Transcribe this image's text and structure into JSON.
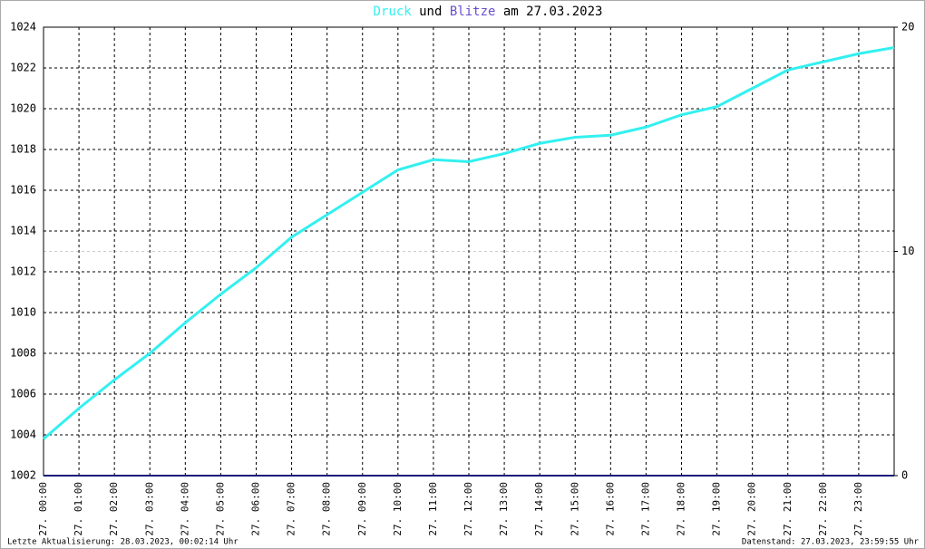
{
  "chart_data": {
    "type": "line",
    "title": {
      "connector": "und",
      "suffix": "am 27.03.2023"
    },
    "x": [
      0,
      1,
      2,
      3,
      4,
      5,
      6,
      7,
      8,
      9,
      10,
      11,
      12,
      13,
      14,
      15,
      16,
      17,
      18,
      19,
      20,
      21,
      22,
      23,
      24
    ],
    "xlim": [
      0,
      24
    ],
    "xticks": [
      {
        "value": 0,
        "label": "27. 00:00"
      },
      {
        "value": 1,
        "label": "27. 01:00"
      },
      {
        "value": 2,
        "label": "27. 02:00"
      },
      {
        "value": 3,
        "label": "27. 03:00"
      },
      {
        "value": 4,
        "label": "27. 04:00"
      },
      {
        "value": 5,
        "label": "27. 05:00"
      },
      {
        "value": 6,
        "label": "27. 06:00"
      },
      {
        "value": 7,
        "label": "27. 07:00"
      },
      {
        "value": 8,
        "label": "27. 08:00"
      },
      {
        "value": 9,
        "label": "27. 09:00"
      },
      {
        "value": 10,
        "label": "27. 10:00"
      },
      {
        "value": 11,
        "label": "27. 11:00"
      },
      {
        "value": 12,
        "label": "27. 12:00"
      },
      {
        "value": 13,
        "label": "27. 13:00"
      },
      {
        "value": 14,
        "label": "27. 14:00"
      },
      {
        "value": 15,
        "label": "27. 15:00"
      },
      {
        "value": 16,
        "label": "27. 16:00"
      },
      {
        "value": 17,
        "label": "27. 17:00"
      },
      {
        "value": 18,
        "label": "27. 18:00"
      },
      {
        "value": 19,
        "label": "27. 19:00"
      },
      {
        "value": 20,
        "label": "27. 20:00"
      },
      {
        "value": 21,
        "label": "27. 21:00"
      },
      {
        "value": 22,
        "label": "27. 22:00"
      },
      {
        "value": 23,
        "label": "27. 23:00"
      }
    ],
    "ylim": [
      1002,
      1024
    ],
    "yticks": [
      1002,
      1004,
      1006,
      1008,
      1010,
      1012,
      1014,
      1016,
      1018,
      1020,
      1022,
      1024
    ],
    "y2lim": [
      0,
      20
    ],
    "y2ticks": [
      0,
      10,
      20
    ],
    "grid": true,
    "series": [
      {
        "name": "Druck",
        "color": "#33f0f0",
        "values": [
          1003.8,
          1005.3,
          1006.7,
          1008.0,
          1009.5,
          1010.9,
          1012.2,
          1013.7,
          1014.8,
          1015.9,
          1017.0,
          1017.5,
          1017.4,
          1017.8,
          1018.3,
          1018.6,
          1018.7,
          1019.1,
          1019.7,
          1020.1,
          1021.0,
          1021.9,
          1022.3,
          1022.7,
          1023.0
        ]
      },
      {
        "name": "Blitze",
        "color": "#1a1a7a",
        "axis": "y2",
        "values": [
          0,
          0,
          0,
          0,
          0,
          0,
          0,
          0,
          0,
          0,
          0,
          0,
          0,
          0,
          0,
          0,
          0,
          0,
          0,
          0,
          0,
          0,
          0,
          0,
          0
        ]
      }
    ],
    "footer_left": "Letzte Aktualisierung: 28.03.2023, 00:02:14 Uhr",
    "footer_right": "Datenstand: 27.03.2023, 23:59:55 Uhr"
  }
}
